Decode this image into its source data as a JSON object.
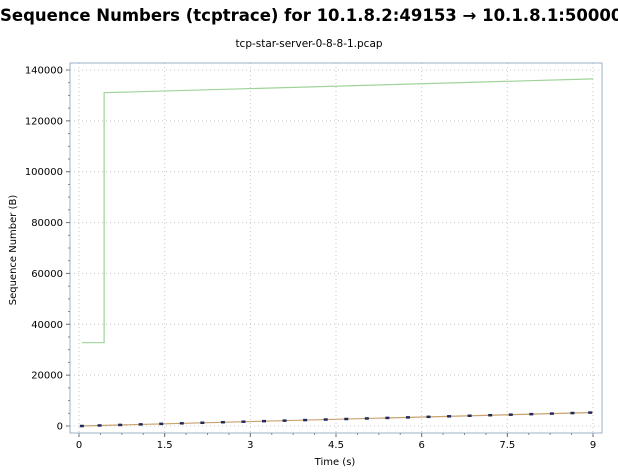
{
  "chart_data": {
    "type": "line",
    "title": "Sequence Numbers (tcptrace) for 10.1.8.2:49153 → 10.1.8.1:50000",
    "subtitle": "tcp-star-server-0-8-8-1.pcap",
    "xlabel": "Time (s)",
    "ylabel": "Sequence Number (B)",
    "xlim": [
      0,
      9
    ],
    "ylim": [
      0,
      140000
    ],
    "x_ticks": [
      "0",
      "1.5",
      "3",
      "4.5",
      "6",
      "7.5",
      "9"
    ],
    "y_ticks": [
      "0",
      "20000",
      "40000",
      "60000",
      "80000",
      "100000",
      "120000",
      "140000"
    ],
    "grid": true,
    "series": [
      {
        "role": "receive-window",
        "color": "#9fd39a",
        "style": "step",
        "x": [
          0.05,
          0.44,
          0.44,
          9.0
        ],
        "y": [
          32768,
          32768,
          131072,
          136500
        ]
      },
      {
        "role": "ack-line",
        "color": "#c9a26e",
        "style": "line",
        "x": [
          0.05,
          9.0
        ],
        "y": [
          0,
          5300
        ]
      },
      {
        "role": "data-segments",
        "color": "#1f2a5a",
        "style": "tick",
        "x": [
          0.05,
          0.36,
          0.72,
          1.08,
          1.44,
          1.8,
          2.16,
          2.52,
          2.88,
          3.24,
          3.6,
          3.96,
          4.32,
          4.68,
          5.04,
          5.4,
          5.76,
          6.12,
          6.48,
          6.84,
          7.2,
          7.56,
          7.92,
          8.28,
          8.64,
          8.95
        ],
        "y": [
          0,
          212,
          424,
          636,
          848,
          1060,
          1272,
          1484,
          1696,
          1908,
          2120,
          2332,
          2544,
          2756,
          2968,
          3180,
          3392,
          3604,
          3816,
          4028,
          4240,
          4452,
          4664,
          4876,
          5088,
          5270
        ]
      }
    ]
  }
}
